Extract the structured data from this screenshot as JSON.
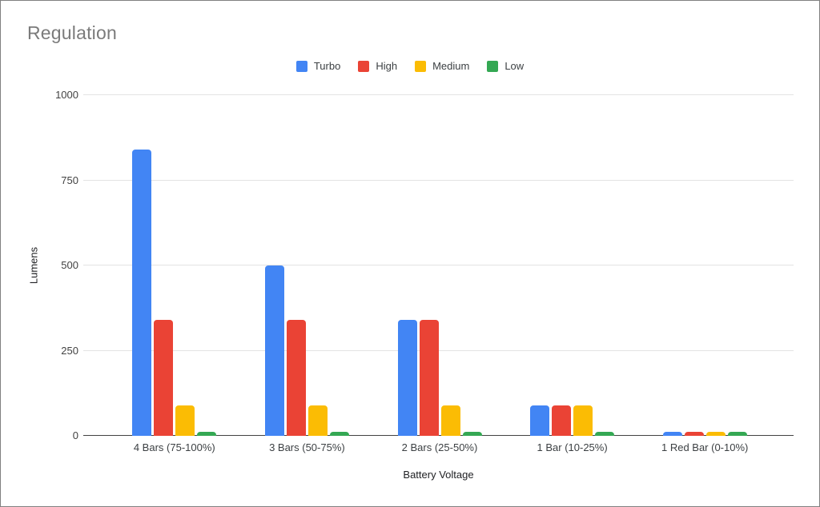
{
  "title": {
    "text": "Regulation",
    "color": "#7b7b7b"
  },
  "frame": {
    "border_color": "#808080",
    "background": "#ffffff"
  },
  "axis": {
    "baseline_color": "#424242",
    "gridline_color": "#e3e3e3",
    "tick_label_color": "#424242"
  },
  "chart_data": {
    "type": "bar",
    "title": "Regulation",
    "xlabel": "Battery Voltage",
    "ylabel": "Lumens",
    "categories": [
      "4 Bars (75-100%)",
      "3 Bars (50-75%)",
      "2 Bars (25-50%)",
      "1 Bar (10-25%)",
      "1 Red Bar (0-10%)"
    ],
    "series": [
      {
        "name": "Turbo",
        "color": "#4285F4",
        "values": [
          840,
          500,
          340,
          90,
          12
        ]
      },
      {
        "name": "High",
        "color": "#EA4335",
        "values": [
          340,
          340,
          340,
          90,
          12
        ]
      },
      {
        "name": "Medium",
        "color": "#FBBC04",
        "values": [
          90,
          90,
          90,
          90,
          12
        ]
      },
      {
        "name": "Low",
        "color": "#34A853",
        "values": [
          12,
          12,
          12,
          12,
          12
        ]
      }
    ],
    "ylim": [
      0,
      1000
    ],
    "yticks": [
      0,
      250,
      500,
      750,
      1000
    ],
    "grid": true,
    "legend_position": "top"
  }
}
